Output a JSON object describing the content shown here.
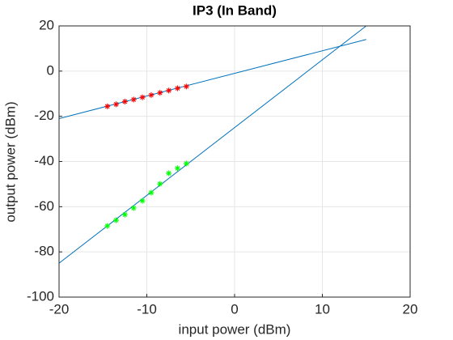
{
  "chart_data": {
    "type": "line",
    "title": "IP3 (In Band)",
    "x_label": "input power (dBm)",
    "y_label": "output power (dBm)",
    "xlim": [
      -20,
      20
    ],
    "xticks": [
      -20,
      -10,
      0,
      10,
      20
    ],
    "ylim": [
      -100,
      20
    ],
    "yticks": [
      -100,
      -80,
      -60,
      -40,
      -20,
      0,
      20
    ],
    "grid": true,
    "series": [
      {
        "color": "#0072bd",
        "marker": "none",
        "x": [
          -20,
          15
        ],
        "values": [
          -21,
          14
        ]
      },
      {
        "color": "#0072bd",
        "marker": "none",
        "x": [
          -20,
          15
        ],
        "values": [
          -85,
          20
        ]
      },
      {
        "color": "#ff0000",
        "marker": "*",
        "x": [
          -14.5,
          -13.5,
          -12.5,
          -11.5,
          -10.5,
          -9.5,
          -8.5,
          -7.5,
          -6.5,
          -5.5
        ],
        "values": [
          -15.6,
          -14.7,
          -13.5,
          -12.6,
          -11.6,
          -10.6,
          -9.6,
          -8.6,
          -7.6,
          -6.8
        ]
      },
      {
        "color": "#00ff00",
        "marker": "*",
        "x": [
          -14.5,
          -13.5,
          -12.5,
          -11.5,
          -10.5,
          -9.5,
          -8.5,
          -7.5,
          -6.5,
          -5.5
        ],
        "values": [
          -68.5,
          -66,
          -63.5,
          -60.6,
          -57.4,
          -53.8,
          -49.9,
          -45.2,
          -43,
          -40.9
        ]
      }
    ]
  }
}
